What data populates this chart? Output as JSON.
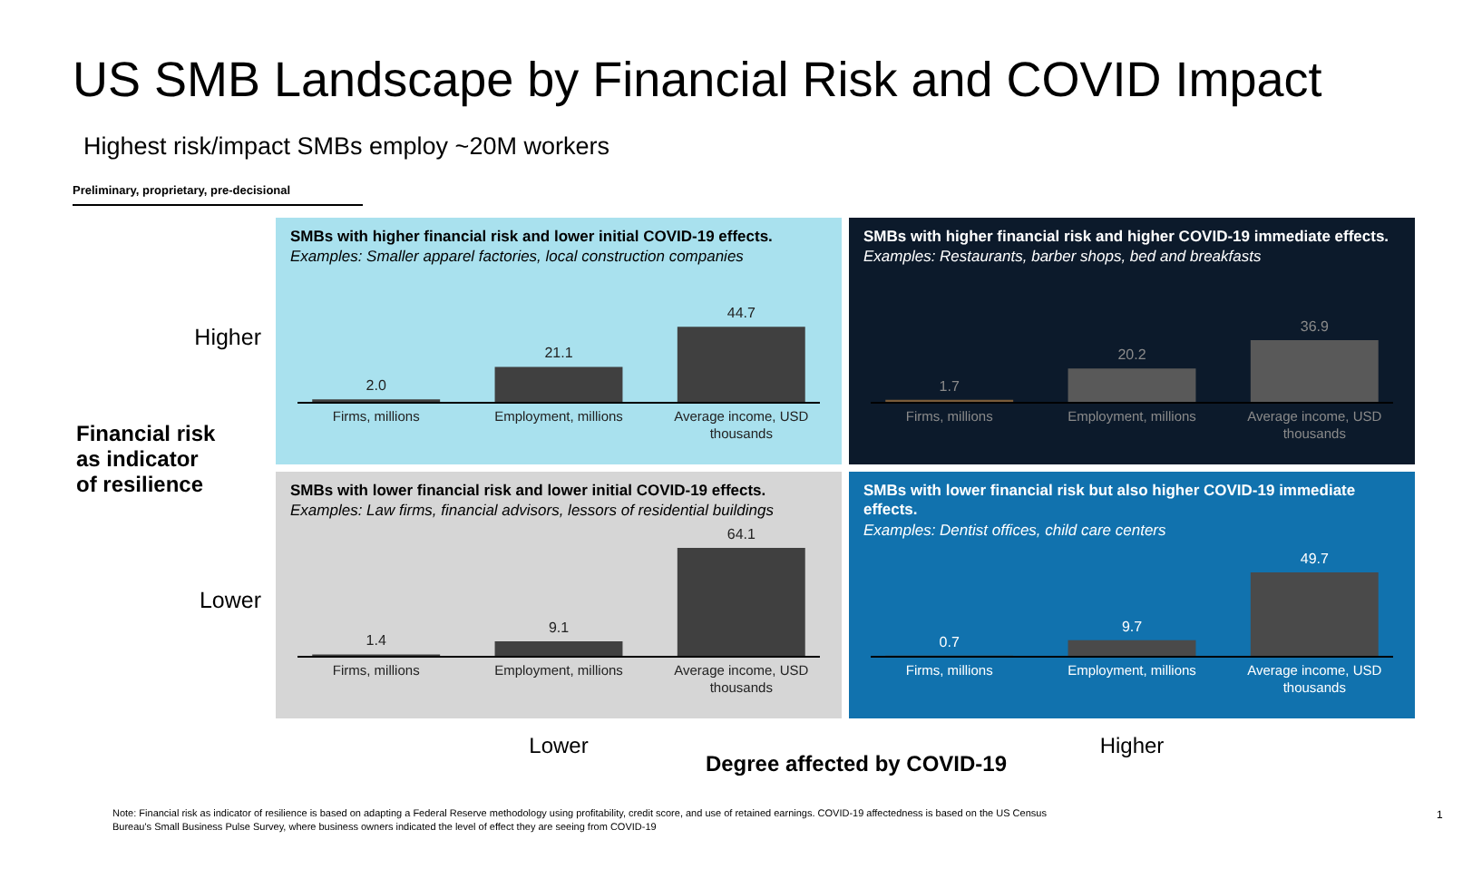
{
  "chart_data": [
    {
      "type": "other",
      "title": "US SMB Landscape by Financial Risk and COVID Impact",
      "subtitle": "Highest risk/impact SMBs employ ~20M workers",
      "ylabel": "Financial risk as indicator of resilience",
      "xlabel": "Degree affected by COVID-19",
      "annotations": [
        "Preliminary, proprietary, pre-decisional",
        "Higher",
        "Lower",
        "Lower",
        "Higher",
        "Note: Financial risk as indicator of resilience is based on adapting a Federal Reserve methodology using profitability, credit score, and use of retained earnings. COVID-19 affectedness is based on the US Census Bureau's Small Business Pulse Survey, where business owners indicated the level of effect they are seeing from COVID-19",
        "1"
      ]
    },
    {
      "type": "bar",
      "title": "SMBs with higher financial risk and lower initial COVID-19 effects.",
      "subtitle": "Examples: Smaller apparel factories, local construction companies",
      "categories": [
        "Firms, millions",
        "Employment, millions",
        "Average income, USD thousands"
      ],
      "values": [
        2.0,
        21.1,
        44.7
      ],
      "value_labels": [
        "2.0",
        "21.1",
        "44.7"
      ],
      "color": "#404040"
    },
    {
      "type": "bar",
      "title": "SMBs with higher financial risk and higher COVID-19 immediate effects.",
      "subtitle": "Examples: Restaurants, barber shops, bed and breakfasts",
      "categories": [
        "Firms, millions",
        "Employment, millions",
        "Average income, USD thousands"
      ],
      "values": [
        1.7,
        20.2,
        36.9
      ],
      "colors": [
        "#7a5c3a",
        "#595959",
        "#595959"
      ],
      "value_labels": [
        "1.7",
        "20.2",
        "36.9"
      ]
    },
    {
      "type": "bar",
      "title": "SMBs with lower financial risk and lower initial COVID-19 effects.",
      "subtitle": "Examples: Law firms, financial advisors, lessors of residential buildings",
      "categories": [
        "Firms, millions",
        "Employment, millions",
        "Average income, USD thousands"
      ],
      "values": [
        1.4,
        9.1,
        64.1
      ],
      "value_labels": [
        "1.4",
        "9.1",
        "64.1"
      ],
      "color": "#404040"
    },
    {
      "type": "bar",
      "title": "SMBs with lower financial risk but also higher COVID-19 immediate effects.",
      "subtitle": "Examples: Dentist offices, child care centers",
      "categories": [
        "Firms, millions",
        "Employment, millions",
        "Average income, USD thousands"
      ],
      "values": [
        0.7,
        9.7,
        49.7
      ],
      "value_labels": [
        "0.7",
        "9.7",
        "49.7"
      ],
      "color": "#4a4a4a"
    }
  ]
}
